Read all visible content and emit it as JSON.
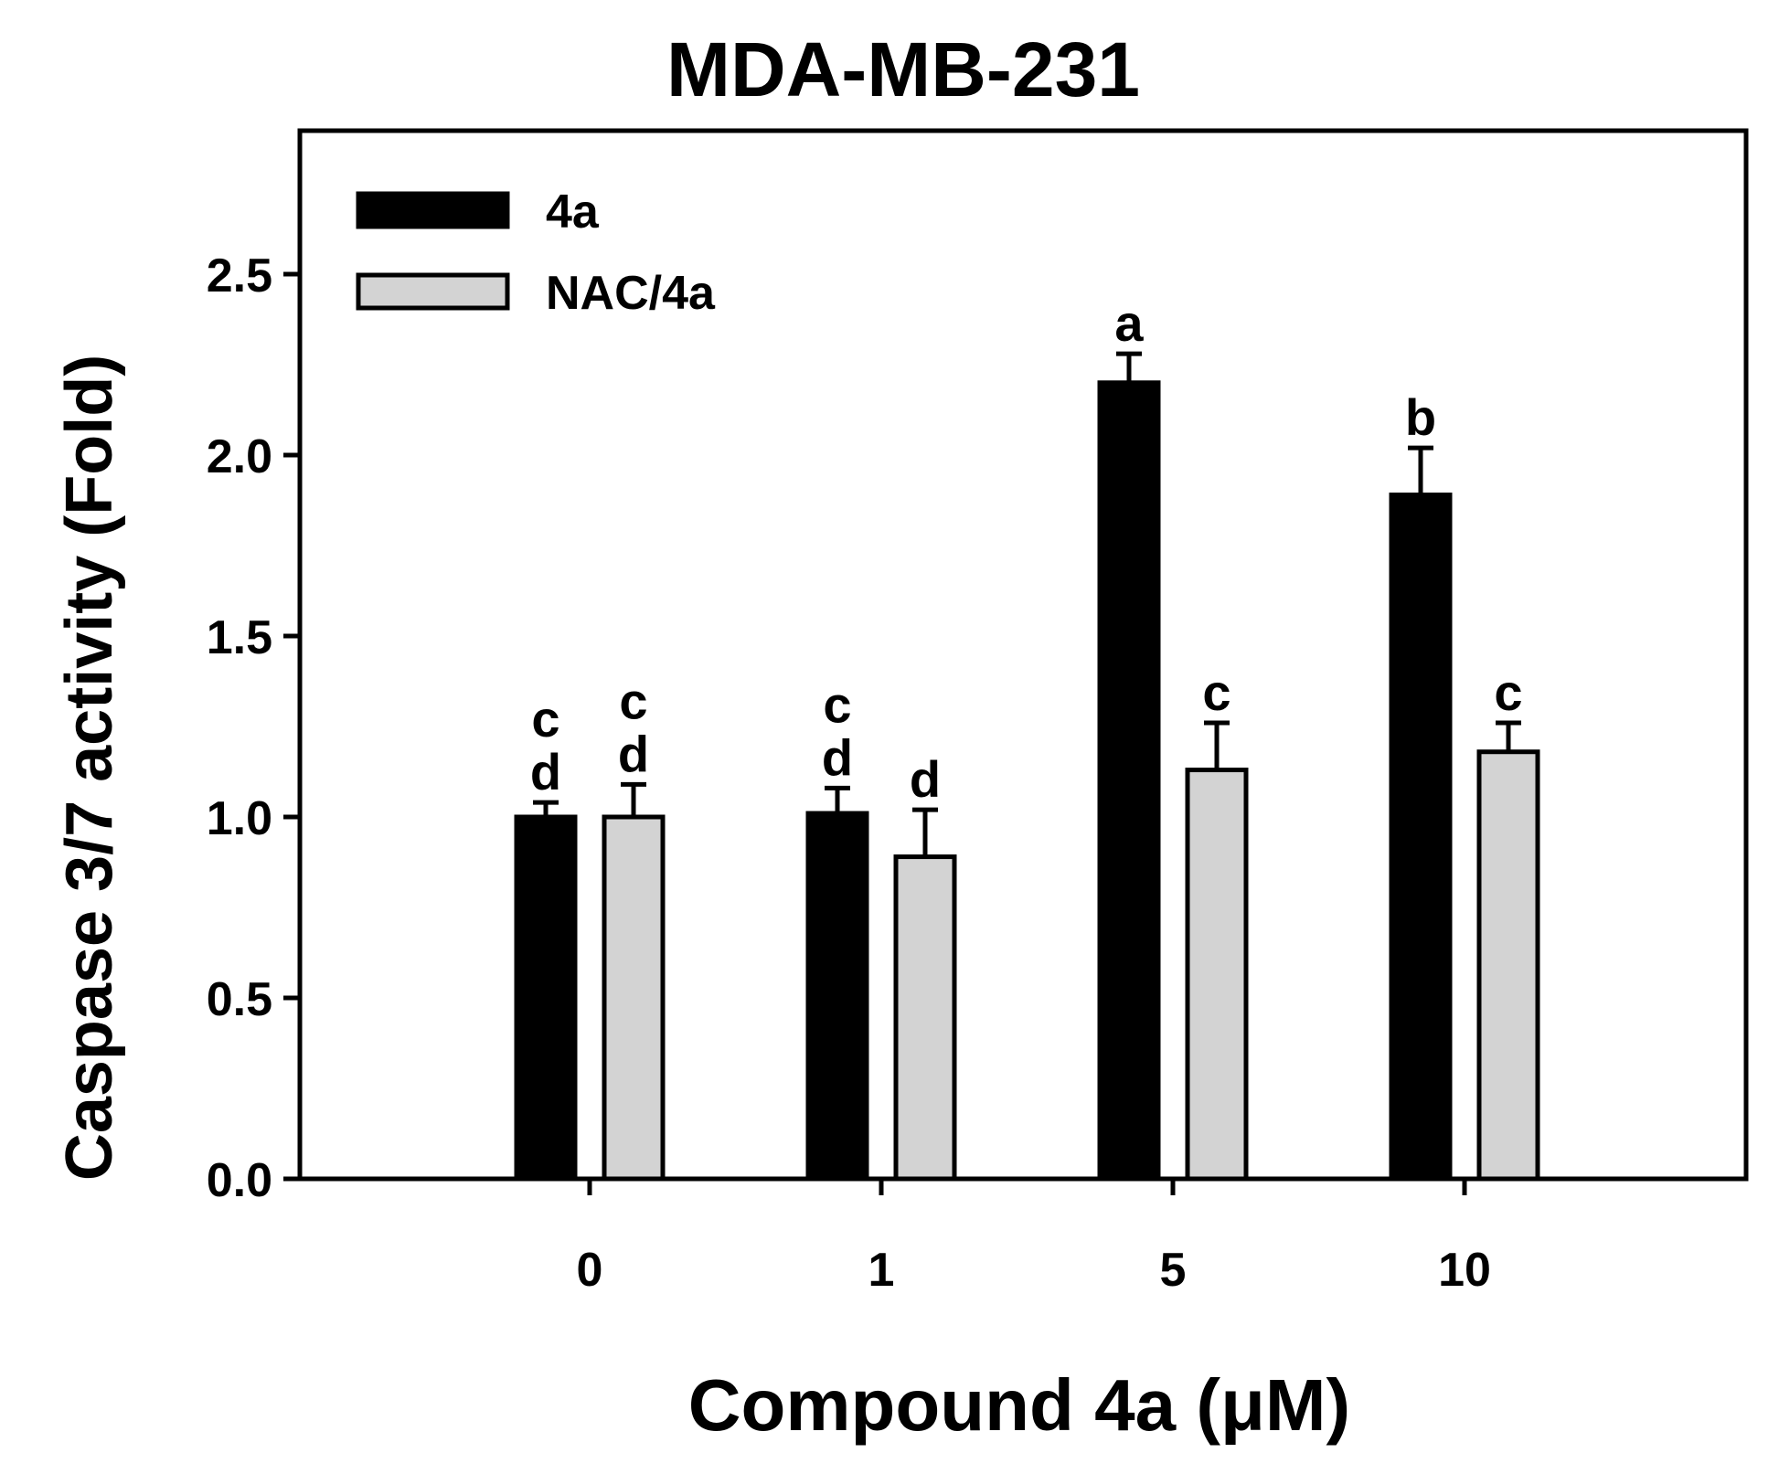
{
  "chart_data": {
    "type": "bar",
    "title": "MDA-MB-231",
    "xlabel": "Compound 4a (μM)",
    "ylabel": "Caspase 3/7 activity (Fold)",
    "ylim": [
      0,
      2.9
    ],
    "yticks": [
      "0.0",
      "0.5",
      "1.0",
      "1.5",
      "2.0",
      "2.5"
    ],
    "ytick_values": [
      0,
      0.5,
      1.0,
      1.5,
      2.0,
      2.5
    ],
    "categories": [
      "0",
      "1",
      "5",
      "10"
    ],
    "legend_position": "top-left",
    "series": [
      {
        "name": "4a",
        "color": "#000000",
        "values": [
          1.0,
          1.01,
          2.2,
          1.89
        ],
        "errors": [
          0.04,
          0.07,
          0.08,
          0.13
        ],
        "labels": [
          "c\nd",
          "c\nd",
          "a",
          "b"
        ]
      },
      {
        "name": "NAC/4a",
        "color": "#d3d3d3",
        "values": [
          1.0,
          0.89,
          1.13,
          1.18
        ],
        "errors": [
          0.09,
          0.13,
          0.13,
          0.08
        ],
        "labels": [
          "c\nd",
          "d",
          "c",
          "c"
        ]
      }
    ]
  }
}
